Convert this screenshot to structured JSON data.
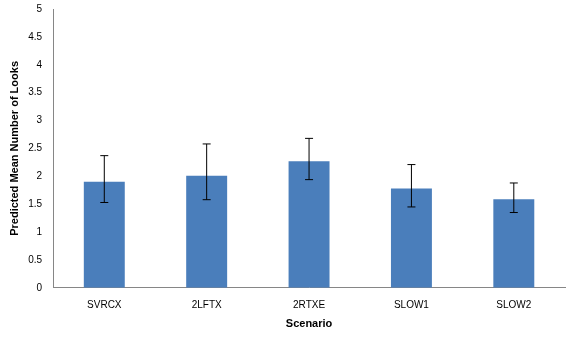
{
  "chart_data": {
    "type": "bar",
    "x_label": "Scenario",
    "y_label": "Predicted Mean Number of Looks",
    "categories": [
      "SVRCX",
      "2LFTX",
      "2RTXE",
      "SLOW1",
      "SLOW2"
    ],
    "values": [
      1.9,
      2.01,
      2.27,
      1.78,
      1.59
    ],
    "error_low": [
      1.53,
      1.58,
      1.94,
      1.45,
      1.35
    ],
    "error_high": [
      2.37,
      2.58,
      2.68,
      2.21,
      1.88
    ],
    "color": "#4a7ebb",
    "ylim": [
      0,
      5
    ],
    "yticks": [
      0,
      0.5,
      1,
      1.5,
      2,
      2.5,
      3,
      3.5,
      4,
      4.5,
      5
    ],
    "grid": false
  }
}
